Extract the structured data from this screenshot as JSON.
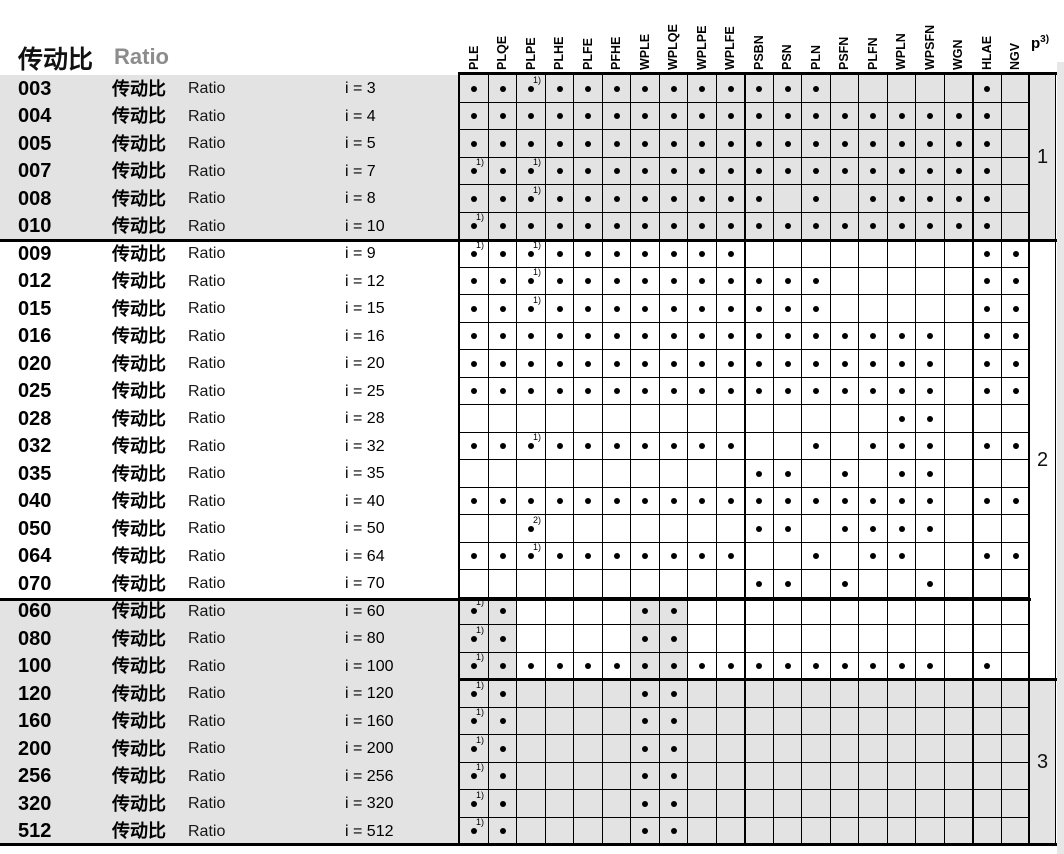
{
  "header": {
    "title_zh": "传动比",
    "title_en": "Ratio",
    "columns": [
      "PLE",
      "PLQE",
      "PLPE",
      "PLHE",
      "PLFE",
      "PFHE",
      "WPLE",
      "WPLQE",
      "WPLPE",
      "WPLFE",
      "PSBN",
      "PSN",
      "PLN",
      "PSFN",
      "PLFN",
      "WPLN",
      "WPSFN",
      "WGN",
      "HLAE",
      "NGV"
    ],
    "stages_label": "p",
    "stages_sup": "3)"
  },
  "row_label_zh": "传动比",
  "row_label_en": "Ratio",
  "footnote_markers": {
    "d1": "1)",
    "d2": "2)"
  },
  "colors": {
    "band_gray": "#e3e3e3",
    "grid_line": "#000000",
    "header_gray": "#8c8c8c",
    "edge_strip": "#e7e7e7"
  },
  "groups": [
    {
      "label": "1",
      "start": 0,
      "end": 6,
      "shade": "gray"
    },
    {
      "label": "2",
      "start": 6,
      "end": 22,
      "shade": "white"
    },
    {
      "label": "3",
      "start": 22,
      "end": 28,
      "shade": "gray"
    }
  ],
  "rows": [
    {
      "code": "003",
      "ratio": "i = 3",
      "shade": "gray",
      "cells": [
        "d",
        "d",
        "d1",
        "d",
        "d",
        "d",
        "d",
        "d",
        "d",
        "d",
        "d",
        "d",
        "d",
        "",
        "",
        "",
        "",
        "",
        "d",
        ""
      ]
    },
    {
      "code": "004",
      "ratio": "i = 4",
      "shade": "gray",
      "cells": [
        "d",
        "d",
        "d",
        "d",
        "d",
        "d",
        "d",
        "d",
        "d",
        "d",
        "d",
        "d",
        "d",
        "d",
        "d",
        "d",
        "d",
        "d",
        "d",
        ""
      ]
    },
    {
      "code": "005",
      "ratio": "i = 5",
      "shade": "gray",
      "cells": [
        "d",
        "d",
        "d",
        "d",
        "d",
        "d",
        "d",
        "d",
        "d",
        "d",
        "d",
        "d",
        "d",
        "d",
        "d",
        "d",
        "d",
        "d",
        "d",
        ""
      ]
    },
    {
      "code": "007",
      "ratio": "i = 7",
      "shade": "gray",
      "cells": [
        "d1",
        "d",
        "d1",
        "d",
        "d",
        "d",
        "d",
        "d",
        "d",
        "d",
        "d",
        "d",
        "d",
        "d",
        "d",
        "d",
        "d",
        "d",
        "d",
        ""
      ]
    },
    {
      "code": "008",
      "ratio": "i = 8",
      "shade": "gray",
      "cells": [
        "d",
        "d",
        "d1",
        "d",
        "d",
        "d",
        "d",
        "d",
        "d",
        "d",
        "d",
        "",
        "d",
        "",
        "d",
        "d",
        "d",
        "d",
        "d",
        ""
      ]
    },
    {
      "code": "010",
      "ratio": "i = 10",
      "shade": "gray",
      "cells": [
        "d1",
        "d",
        "d",
        "d",
        "d",
        "d",
        "d",
        "d",
        "d",
        "d",
        "d",
        "d",
        "d",
        "d",
        "d",
        "d",
        "d",
        "d",
        "d",
        ""
      ]
    },
    {
      "code": "009",
      "ratio": "i = 9",
      "shade": "white",
      "cells": [
        "d1",
        "d",
        "d1",
        "d",
        "d",
        "d",
        "d",
        "d",
        "d",
        "d",
        "",
        "",
        "",
        "",
        "",
        "",
        "",
        "",
        "d",
        "d"
      ]
    },
    {
      "code": "012",
      "ratio": "i = 12",
      "shade": "white",
      "cells": [
        "d",
        "d",
        "d1",
        "d",
        "d",
        "d",
        "d",
        "d",
        "d",
        "d",
        "d",
        "d",
        "d",
        "",
        "",
        "",
        "",
        "",
        "d",
        "d"
      ]
    },
    {
      "code": "015",
      "ratio": "i = 15",
      "shade": "white",
      "cells": [
        "d",
        "d",
        "d1",
        "d",
        "d",
        "d",
        "d",
        "d",
        "d",
        "d",
        "d",
        "d",
        "d",
        "",
        "",
        "",
        "",
        "",
        "d",
        "d"
      ]
    },
    {
      "code": "016",
      "ratio": "i = 16",
      "shade": "white",
      "cells": [
        "d",
        "d",
        "d",
        "d",
        "d",
        "d",
        "d",
        "d",
        "d",
        "d",
        "d",
        "d",
        "d",
        "d",
        "d",
        "d",
        "d",
        "",
        "d",
        "d"
      ]
    },
    {
      "code": "020",
      "ratio": "i = 20",
      "shade": "white",
      "cells": [
        "d",
        "d",
        "d",
        "d",
        "d",
        "d",
        "d",
        "d",
        "d",
        "d",
        "d",
        "d",
        "d",
        "d",
        "d",
        "d",
        "d",
        "",
        "d",
        "d"
      ]
    },
    {
      "code": "025",
      "ratio": "i = 25",
      "shade": "white",
      "cells": [
        "d",
        "d",
        "d",
        "d",
        "d",
        "d",
        "d",
        "d",
        "d",
        "d",
        "d",
        "d",
        "d",
        "d",
        "d",
        "d",
        "d",
        "",
        "d",
        "d"
      ]
    },
    {
      "code": "028",
      "ratio": "i = 28",
      "shade": "white",
      "cells": [
        "",
        "",
        "",
        "",
        "",
        "",
        "",
        "",
        "",
        "",
        "",
        "",
        "",
        "",
        "",
        "d",
        "d",
        "",
        "",
        ""
      ]
    },
    {
      "code": "032",
      "ratio": "i = 32",
      "shade": "white",
      "cells": [
        "d",
        "d",
        "d1",
        "d",
        "d",
        "d",
        "d",
        "d",
        "d",
        "d",
        "",
        "",
        "d",
        "",
        "d",
        "d",
        "d",
        "",
        "d",
        "d"
      ]
    },
    {
      "code": "035",
      "ratio": "i = 35",
      "shade": "white",
      "cells": [
        "",
        "",
        "",
        "",
        "",
        "",
        "",
        "",
        "",
        "",
        "d",
        "d",
        "",
        "d",
        "",
        "d",
        "d",
        "",
        "",
        ""
      ]
    },
    {
      "code": "040",
      "ratio": "i = 40",
      "shade": "white",
      "cells": [
        "d",
        "d",
        "d",
        "d",
        "d",
        "d",
        "d",
        "d",
        "d",
        "d",
        "d",
        "d",
        "d",
        "d",
        "d",
        "d",
        "d",
        "",
        "d",
        "d"
      ]
    },
    {
      "code": "050",
      "ratio": "i = 50",
      "shade": "white",
      "cells": [
        "",
        "",
        "d2",
        "",
        "",
        "",
        "",
        "",
        "",
        "",
        "d",
        "d",
        "",
        "d",
        "d",
        "d",
        "d",
        "",
        "",
        ""
      ]
    },
    {
      "code": "064",
      "ratio": "i = 64",
      "shade": "white",
      "cells": [
        "d",
        "d",
        "d1",
        "d",
        "d",
        "d",
        "d",
        "d",
        "d",
        "d",
        "",
        "",
        "d",
        "",
        "d",
        "d",
        "",
        "",
        "d",
        "d"
      ]
    },
    {
      "code": "070",
      "ratio": "i = 70",
      "shade": "white",
      "cells": [
        "",
        "",
        "",
        "",
        "",
        "",
        "",
        "",
        "",
        "",
        "d",
        "d",
        "",
        "d",
        "",
        "",
        "d",
        "",
        "",
        ""
      ]
    },
    {
      "code": "060",
      "ratio": "i = 60",
      "shade": "partial",
      "cells": [
        "d1",
        "d",
        "",
        "",
        "",
        "",
        "d",
        "d",
        "",
        "",
        "",
        "",
        "",
        "",
        "",
        "",
        "",
        "",
        "",
        ""
      ]
    },
    {
      "code": "080",
      "ratio": "i = 80",
      "shade": "partial",
      "cells": [
        "d1",
        "d",
        "",
        "",
        "",
        "",
        "d",
        "d",
        "",
        "",
        "",
        "",
        "",
        "",
        "",
        "",
        "",
        "",
        "",
        ""
      ]
    },
    {
      "code": "100",
      "ratio": "i = 100",
      "shade": "partial",
      "cells": [
        "d1",
        "d",
        "d",
        "d",
        "d",
        "d",
        "d",
        "d",
        "d",
        "d",
        "d",
        "d",
        "d",
        "d",
        "d",
        "d",
        "d",
        "",
        "d",
        ""
      ]
    },
    {
      "code": "120",
      "ratio": "i = 120",
      "shade": "gray",
      "cells": [
        "d1",
        "d",
        "",
        "",
        "",
        "",
        "d",
        "d",
        "",
        "",
        "",
        "",
        "",
        "",
        "",
        "",
        "",
        "",
        "",
        ""
      ]
    },
    {
      "code": "160",
      "ratio": "i = 160",
      "shade": "gray",
      "cells": [
        "d1",
        "d",
        "",
        "",
        "",
        "",
        "d",
        "d",
        "",
        "",
        "",
        "",
        "",
        "",
        "",
        "",
        "",
        "",
        "",
        ""
      ]
    },
    {
      "code": "200",
      "ratio": "i = 200",
      "shade": "gray",
      "cells": [
        "d1",
        "d",
        "",
        "",
        "",
        "",
        "d",
        "d",
        "",
        "",
        "",
        "",
        "",
        "",
        "",
        "",
        "",
        "",
        "",
        ""
      ]
    },
    {
      "code": "256",
      "ratio": "i = 256",
      "shade": "gray",
      "cells": [
        "d1",
        "d",
        "",
        "",
        "",
        "",
        "d",
        "d",
        "",
        "",
        "",
        "",
        "",
        "",
        "",
        "",
        "",
        "",
        "",
        ""
      ]
    },
    {
      "code": "320",
      "ratio": "i = 320",
      "shade": "gray",
      "cells": [
        "d1",
        "d",
        "",
        "",
        "",
        "",
        "d",
        "d",
        "",
        "",
        "",
        "",
        "",
        "",
        "",
        "",
        "",
        "",
        "",
        ""
      ]
    },
    {
      "code": "512",
      "ratio": "i = 512",
      "shade": "gray",
      "cells": [
        "d1",
        "d",
        "",
        "",
        "",
        "",
        "d",
        "d",
        "",
        "",
        "",
        "",
        "",
        "",
        "",
        "",
        "",
        "",
        "",
        ""
      ]
    }
  ]
}
